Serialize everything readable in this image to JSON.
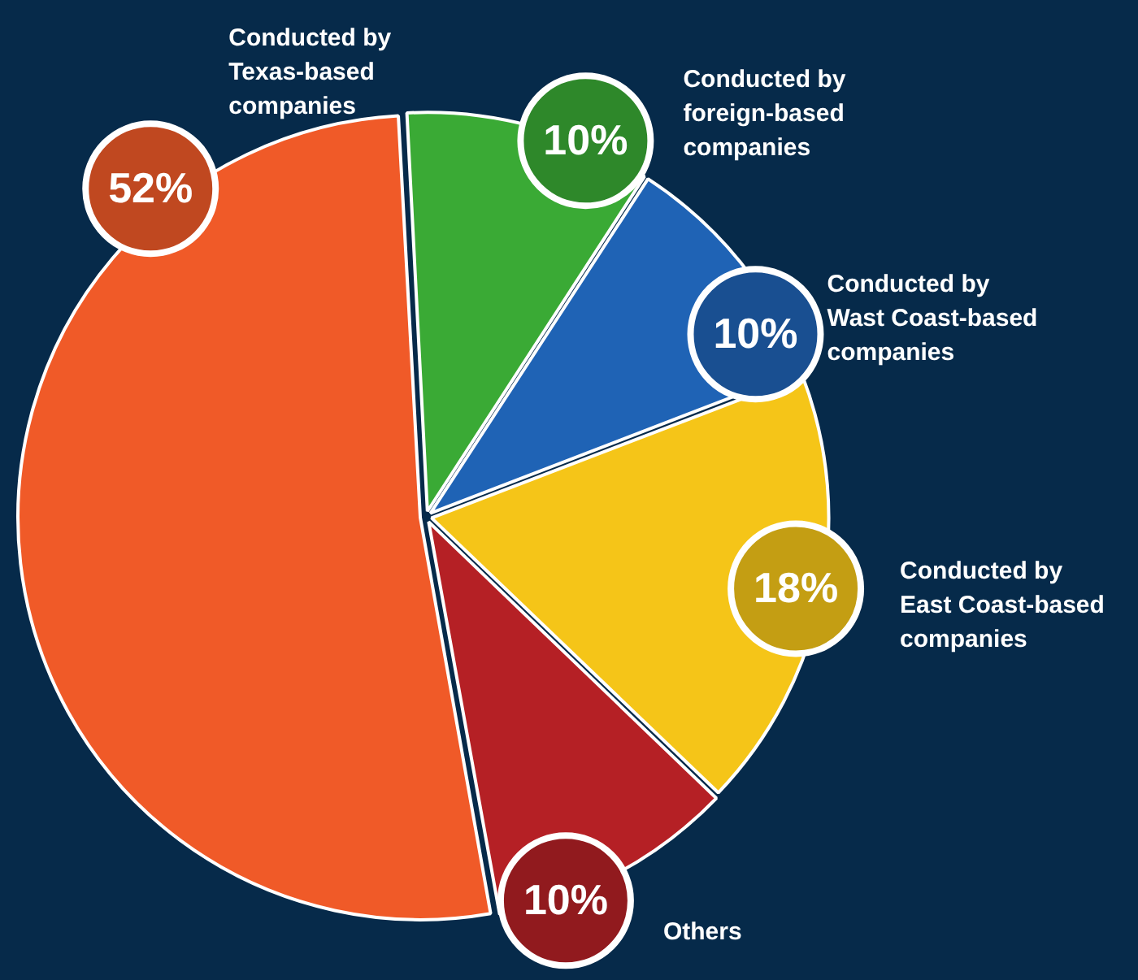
{
  "chart_data": {
    "type": "pie",
    "categories": [
      "Conducted by foreign-based companies",
      "Conducted by Wast Coast-based companies",
      "Conducted by East Coast-based companies",
      "Others",
      "Conducted by Texas-based companies"
    ],
    "values": [
      10,
      10,
      18,
      10,
      52
    ],
    "value_labels": [
      "10%",
      "10%",
      "18%",
      "10%",
      "52%"
    ],
    "colors": [
      "#3aaa35",
      "#1f63b5",
      "#f5c518",
      "#b52025",
      "#f05a28"
    ],
    "legend": false
  }
}
